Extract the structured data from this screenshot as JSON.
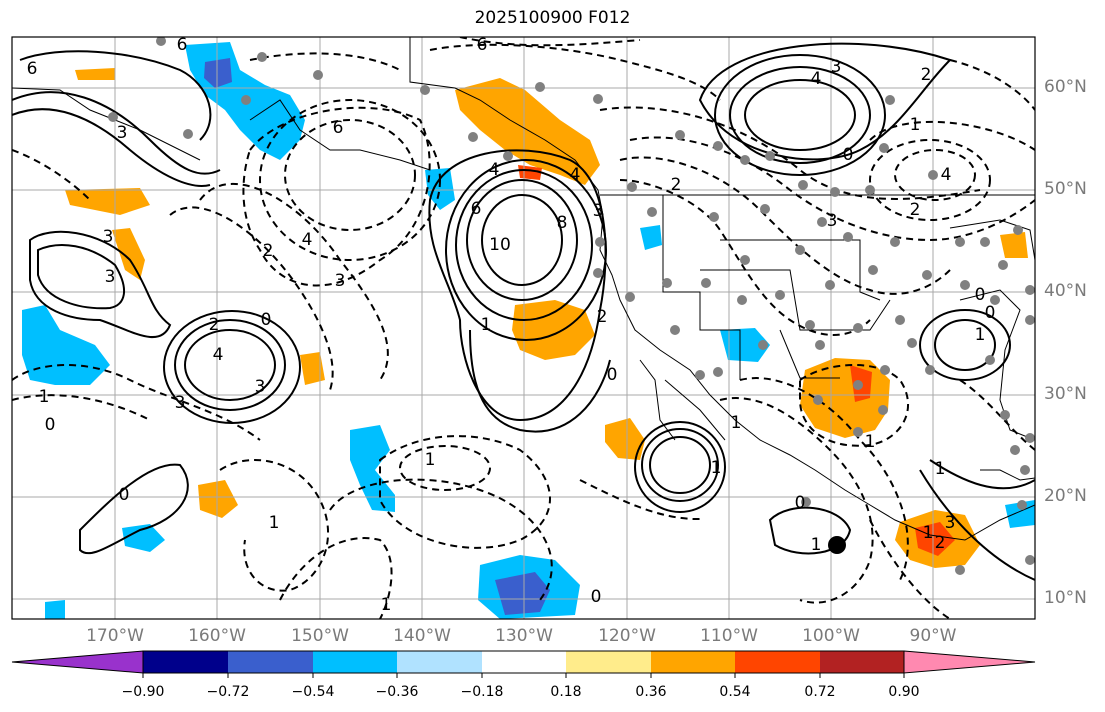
{
  "title": "2025100900 F012",
  "lat_labels": [
    "60°N",
    "50°N",
    "40°N",
    "30°N",
    "20°N",
    "10°N"
  ],
  "lon_labels": [
    "170°W",
    "160°W",
    "150°W",
    "140°W",
    "130°W",
    "120°W",
    "110°W",
    "100°W",
    "90°W"
  ],
  "colorbar": {
    "ticks": [
      "−0.90",
      "−0.72",
      "−0.54",
      "−0.36",
      "−0.18",
      "0.18",
      "0.36",
      "0.54",
      "0.72",
      "0.90"
    ],
    "colors": [
      "#9932cc",
      "#00008b",
      "#3a5fcd",
      "#00bfff",
      "#b0e2ff",
      "#ffffff",
      "#ffec8b",
      "#ffa500",
      "#ff4500",
      "#b22222",
      "#ff89b0"
    ]
  },
  "contour_labels": [
    "6",
    "6",
    "3",
    "3",
    "6",
    "4",
    "2",
    "3",
    "1",
    "3",
    "3",
    "2",
    "4",
    "3",
    "0",
    "0",
    "1",
    "1",
    "1",
    "0",
    "8",
    "10",
    "4",
    "6",
    "4",
    "1",
    "0",
    "2",
    "3",
    "2",
    "0",
    "1",
    "1",
    "6",
    "4",
    "4",
    "3",
    "2",
    "0",
    "1",
    "2",
    "3",
    "0",
    "1",
    "0",
    "1",
    "1",
    "2",
    "3",
    "1",
    "1",
    "0"
  ]
}
